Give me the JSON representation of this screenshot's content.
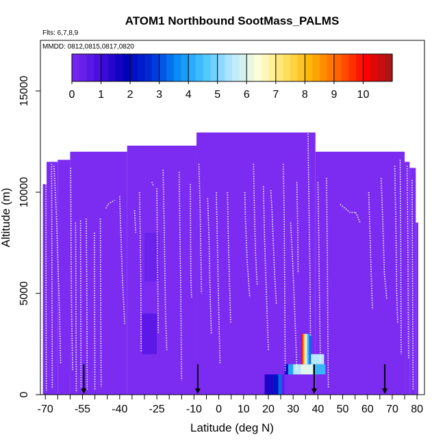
{
  "chart_data": {
    "type": "heatmap",
    "title": "ATOM1 Northbound SootMass_PALMS",
    "subtitle_flights": "Flts: 6,7,8,9",
    "subtitle_dates": "MMDD: 0812,0815,0817,0820",
    "xlabel": "Latitude (deg N)",
    "ylabel": "Altitude (m)",
    "xlim": [
      -72,
      83
    ],
    "ylim": [
      0,
      17500
    ],
    "x_ticks": [
      -70,
      -55,
      -40,
      -25,
      -10,
      0,
      10,
      20,
      30,
      40,
      50,
      60,
      70,
      80
    ],
    "x_minor_ticks": [
      -65,
      -60,
      -50,
      -45,
      -35,
      -30,
      -20,
      -15,
      -5,
      5,
      15,
      25,
      35,
      45,
      55,
      65,
      75
    ],
    "y_ticks": [
      0,
      5000,
      10000,
      15000
    ],
    "colorbar": {
      "ticks": [
        0,
        1,
        2,
        3,
        4,
        5,
        6,
        7,
        8,
        9,
        10
      ],
      "range": [
        0,
        11
      ],
      "colors": [
        "#7b2cf0",
        "#4a0ee0",
        "#0000b8",
        "#0030d8",
        "#0a90f5",
        "#4cc6ff",
        "#b8e8ff",
        "#ffffd8",
        "#ffe060",
        "#ffb000",
        "#ff6000",
        "#ff0000",
        "#a01818"
      ]
    },
    "background_value": 0,
    "column_tops": [
      {
        "x": [
          -71,
          -69.5
        ],
        "top": 10400
      },
      {
        "x": [
          -69.5,
          -65
        ],
        "top": 11500
      },
      {
        "x": [
          -65,
          -60
        ],
        "top": 11600
      },
      {
        "x": [
          -60,
          -37
        ],
        "top": 12000
      },
      {
        "x": [
          -37,
          -9
        ],
        "top": 12300
      },
      {
        "x": [
          -9,
          39
        ],
        "top": 12950
      },
      {
        "x": [
          39,
          75
        ],
        "top": 12000
      },
      {
        "x": [
          75,
          77
        ],
        "top": 11500
      },
      {
        "x": [
          77,
          79.5
        ],
        "top": 11200
      },
      {
        "x": [
          79.5,
          80.5
        ],
        "top": 8500
      }
    ],
    "highlights": [
      {
        "x": [
          -30,
          -24
        ],
        "y": [
          5600,
          8000
        ],
        "value": 0.3
      },
      {
        "x": [
          -31,
          -25
        ],
        "y": [
          2000,
          4000
        ],
        "value": 0.6
      },
      {
        "x": [
          18.5,
          22
        ],
        "y": [
          0,
          1000
        ],
        "value": 1.5
      },
      {
        "x": [
          22,
          24
        ],
        "y": [
          0,
          1000
        ],
        "value": 2.2
      },
      {
        "x": [
          24,
          25.5
        ],
        "y": [
          0,
          1000
        ],
        "value": 3.3
      },
      {
        "x": [
          25.5,
          26.5
        ],
        "y": [
          0,
          1000
        ],
        "value": 0.5
      },
      {
        "x": [
          26.5,
          28
        ],
        "y": [
          1000,
          1500
        ],
        "value": 1.5
      },
      {
        "x": [
          28,
          30
        ],
        "y": [
          1000,
          1500
        ],
        "value": 4.0
      },
      {
        "x": [
          30,
          33
        ],
        "y": [
          1000,
          1500
        ],
        "value": 5.5
      },
      {
        "x": [
          33,
          38
        ],
        "y": [
          1000,
          1500
        ],
        "value": 6.0
      },
      {
        "x": [
          38,
          43
        ],
        "y": [
          1000,
          1500
        ],
        "value": 4.3
      },
      {
        "x": [
          34,
          36.5
        ],
        "y": [
          1500,
          2000
        ],
        "value": 4.7
      },
      {
        "x": [
          36.5,
          42.5
        ],
        "y": [
          1500,
          2000
        ],
        "value": 5.5
      },
      {
        "x": [
          33.3,
          33.9
        ],
        "y": [
          1500,
          3000
        ],
        "value": 10.0
      },
      {
        "x": [
          33.9,
          34.5
        ],
        "y": [
          1500,
          3000
        ],
        "value": 8.5
      },
      {
        "x": [
          34.5,
          35.2
        ],
        "y": [
          1500,
          3000
        ],
        "value": 7.0
      },
      {
        "x": [
          35.2,
          35.8
        ],
        "y": [
          1500,
          3000
        ],
        "value": 5.5
      },
      {
        "x": [
          35.8,
          36.5
        ],
        "y": [
          1500,
          3000
        ],
        "value": 4.2
      },
      {
        "x": [
          36.5,
          37.2
        ],
        "y": [
          1500,
          3000
        ],
        "value": 3.3
      }
    ],
    "flight_tracks": [
      [
        [
          -69.8,
          10400
        ],
        [
          -69.7,
          3000
        ],
        [
          -69.6,
          200
        ]
      ],
      [
        [
          -67.5,
          11400
        ],
        [
          -67.2,
          300
        ]
      ],
      [
        [
          -66.5,
          11300
        ],
        [
          -65.6,
          9000
        ],
        [
          -64.5,
          5000
        ],
        [
          -63.8,
          1500
        ]
      ],
      [
        [
          -59.8,
          11200
        ],
        [
          -59.4,
          4000
        ],
        [
          -59,
          1200
        ]
      ],
      [
        [
          -57.8,
          8500
        ],
        [
          -57.5,
          100
        ]
      ],
      [
        [
          -55.8,
          8600
        ],
        [
          -55.6,
          300
        ]
      ],
      [
        [
          -53.5,
          8700
        ],
        [
          -53.3,
          5500
        ],
        [
          -53.1,
          200
        ]
      ],
      [
        [
          -50.2,
          8000
        ],
        [
          -50,
          200
        ]
      ],
      [
        [
          -47.8,
          8700
        ],
        [
          -47.5,
          400
        ]
      ],
      [
        [
          -45.5,
          9200
        ],
        [
          -44.8,
          9400
        ],
        [
          -43.5,
          9500
        ],
        [
          -42,
          9600
        ]
      ],
      [
        [
          -40,
          9800
        ],
        [
          -39,
          6000
        ],
        [
          -38,
          3500
        ]
      ],
      [
        [
          -34,
          9100
        ],
        [
          -33.5,
          8000
        ]
      ],
      [
        [
          -32,
          10000
        ],
        [
          -31.5,
          6000
        ],
        [
          -31.3,
          2100
        ]
      ],
      [
        [
          -27,
          10500
        ],
        [
          -26.3,
          10300
        ]
      ],
      [
        [
          -25,
          10200
        ],
        [
          -24.7,
          6000
        ],
        [
          -24.4,
          3000
        ]
      ],
      [
        [
          -22.5,
          11100
        ],
        [
          -22,
          8000
        ],
        [
          -21.5,
          4000
        ],
        [
          -21,
          2200
        ]
      ],
      [
        [
          -16,
          11000
        ],
        [
          -15.7,
          8000
        ],
        [
          -15.4,
          5500
        ],
        [
          -15,
          700
        ]
      ],
      [
        [
          -11.5,
          10400
        ],
        [
          -11.3,
          6000
        ],
        [
          -11,
          4800
        ]
      ],
      [
        [
          -8,
          11400
        ],
        [
          -7.5,
          9000
        ],
        [
          -7,
          5000
        ]
      ],
      [
        [
          -4.5,
          9700
        ],
        [
          -4,
          8000
        ],
        [
          -3.5,
          5000
        ],
        [
          -3,
          3000
        ]
      ],
      [
        [
          -1,
          10000
        ],
        [
          -0.5,
          7000
        ],
        [
          0,
          4000
        ],
        [
          0.5,
          1500
        ]
      ],
      [
        [
          3.5,
          10000
        ],
        [
          3.8,
          8000
        ],
        [
          4.2,
          6000
        ],
        [
          4.8,
          3500
        ]
      ],
      [
        [
          10.5,
          10000
        ],
        [
          10.8,
          8500
        ],
        [
          11.5,
          6500
        ],
        [
          12.5,
          4800
        ]
      ],
      [
        [
          14,
          11400
        ],
        [
          14.4,
          9000
        ],
        [
          14.8,
          7000
        ],
        [
          15.5,
          5400
        ]
      ],
      [
        [
          18,
          10300
        ],
        [
          18.5,
          7500
        ],
        [
          19.2,
          5000
        ],
        [
          20,
          2200
        ]
      ],
      [
        [
          21,
          10100
        ],
        [
          21.5,
          9000
        ],
        [
          22.5,
          6000
        ],
        [
          23.2,
          4500
        ]
      ],
      [
        [
          26,
          11400
        ],
        [
          26.4,
          9000
        ],
        [
          26.6,
          5000
        ],
        [
          26.8,
          1100
        ]
      ],
      [
        [
          29,
          8500
        ],
        [
          30,
          6000
        ],
        [
          31,
          3000
        ],
        [
          31.5,
          1200
        ]
      ],
      [
        [
          31.5,
          10500
        ],
        [
          31.8,
          8500
        ],
        [
          32,
          6000
        ]
      ],
      [
        [
          36,
          12900
        ],
        [
          36.3,
          10000
        ],
        [
          36.8,
          6000
        ],
        [
          37,
          2900
        ]
      ],
      [
        [
          40,
          10500
        ],
        [
          40.3,
          8000
        ],
        [
          40.7,
          4000
        ],
        [
          41,
          1600
        ]
      ],
      [
        [
          43.5,
          10700
        ],
        [
          43.8,
          7000
        ],
        [
          44,
          3000
        ],
        [
          44.2,
          300
        ]
      ],
      [
        [
          49,
          9400
        ],
        [
          51,
          9200
        ],
        [
          53,
          9000
        ],
        [
          55.2,
          9000
        ]
      ],
      [
        [
          55.2,
          9000
        ],
        [
          56,
          8800
        ],
        [
          57,
          8500
        ]
      ],
      [
        [
          60.5,
          10000
        ],
        [
          61,
          8000
        ],
        [
          61.5,
          6000
        ],
        [
          62,
          4200
        ]
      ],
      [
        [
          65.5,
          10700
        ],
        [
          66.2,
          8500
        ],
        [
          66.8,
          6000
        ],
        [
          67.8,
          4700
        ]
      ],
      [
        [
          71,
          11300
        ],
        [
          71.5,
          8000
        ],
        [
          71.8,
          5000
        ],
        [
          72.2,
          3500
        ]
      ],
      [
        [
          73.2,
          11600
        ],
        [
          73.4,
          8000
        ],
        [
          73.6,
          2000
        ]
      ],
      [
        [
          76,
          11300
        ],
        [
          76.3,
          7000
        ],
        [
          76.5,
          3000
        ],
        [
          76.6,
          1800
        ]
      ],
      [
        [
          78,
          10600
        ],
        [
          78.2,
          6000
        ],
        [
          78.4,
          200
        ]
      ]
    ],
    "markers": [
      -54.5,
      -8.5,
      38.5,
      67
    ]
  }
}
